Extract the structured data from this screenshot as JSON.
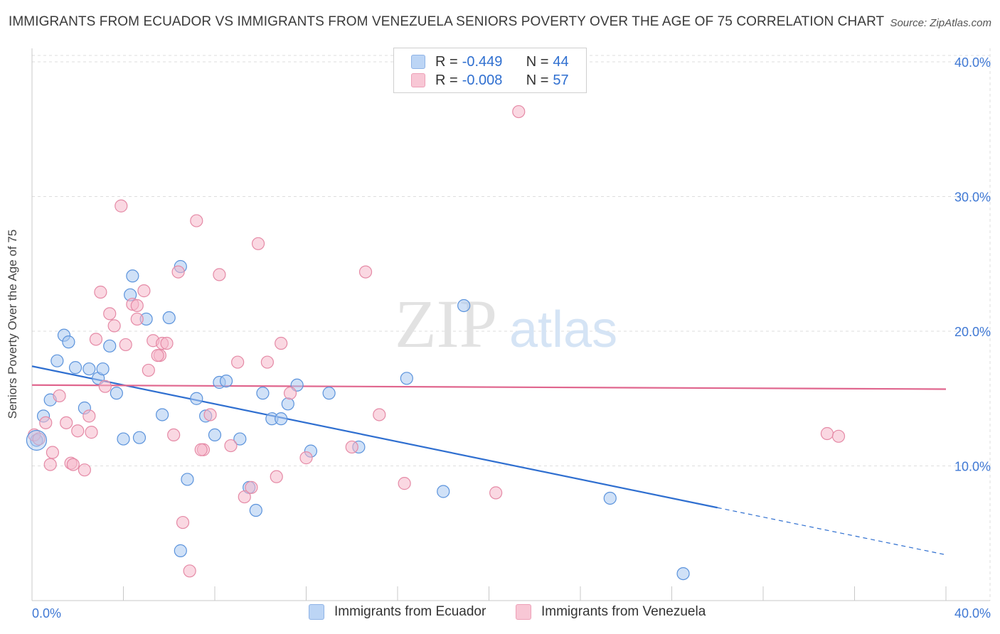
{
  "title": "IMMIGRANTS FROM ECUADOR VS IMMIGRANTS FROM VENEZUELA SENIORS POVERTY OVER THE AGE OF 75 CORRELATION CHART",
  "source": "Source: ZipAtlas.com",
  "watermark": {
    "zip": "ZIP",
    "atlas": "atlas"
  },
  "legend": {
    "rows": [
      {
        "r_label": "R = ",
        "r_value": "-0.449",
        "n_label": "N = ",
        "n_value": "44",
        "color": "#a9c8f0"
      },
      {
        "r_label": "R = ",
        "r_value": "-0.008",
        "n_label": "N = ",
        "n_value": "57",
        "color": "#f5b8ca"
      }
    ]
  },
  "bottom_legend": [
    {
      "label": "Immigrants from Ecuador",
      "color": "#a9c8f0"
    },
    {
      "label": "Immigrants from Venezuela",
      "color": "#f5b8ca"
    }
  ],
  "chart_data": {
    "type": "scatter",
    "title": "IMMIGRANTS FROM ECUADOR VS IMMIGRANTS FROM VENEZUELA SENIORS POVERTY OVER THE AGE OF 75 CORRELATION CHART",
    "xlabel": "",
    "ylabel": "Seniors Poverty Over the Age of 75",
    "xlim": [
      0,
      40
    ],
    "ylim": [
      0,
      41
    ],
    "x_tick_labels": [
      "0.0%",
      "40.0%"
    ],
    "y_tick_labels": [
      "10.0%",
      "20.0%",
      "30.0%",
      "40.0%"
    ],
    "y_ticks": [
      10,
      20,
      30,
      40
    ],
    "grid": true,
    "legend_position": "top-center",
    "series": [
      {
        "name": "Immigrants from Ecuador",
        "color": "#5b93dc",
        "fill": "#a9c8f0",
        "trend": {
          "x0": 0,
          "y0": 17.4,
          "x1": 30,
          "y1": 6.9,
          "dash_to_x": 40,
          "dash_to_y": 3.4,
          "color": "#2f6fd0"
        },
        "points": [
          [
            0.2,
            11.9
          ],
          [
            0.5,
            13.7
          ],
          [
            0.8,
            14.9
          ],
          [
            1.1,
            17.8
          ],
          [
            1.4,
            19.7
          ],
          [
            1.6,
            19.2
          ],
          [
            1.9,
            17.3
          ],
          [
            2.3,
            14.3
          ],
          [
            2.5,
            17.2
          ],
          [
            2.9,
            16.5
          ],
          [
            3.1,
            17.2
          ],
          [
            3.4,
            18.9
          ],
          [
            3.7,
            15.4
          ],
          [
            4.0,
            12.0
          ],
          [
            4.3,
            22.7
          ],
          [
            4.4,
            24.1
          ],
          [
            4.7,
            12.1
          ],
          [
            5.0,
            20.9
          ],
          [
            5.7,
            13.8
          ],
          [
            6.0,
            21.0
          ],
          [
            6.5,
            24.8
          ],
          [
            6.8,
            9.0
          ],
          [
            7.2,
            15.0
          ],
          [
            7.6,
            13.7
          ],
          [
            8.2,
            16.2
          ],
          [
            8.5,
            16.3
          ],
          [
            8.0,
            12.3
          ],
          [
            9.1,
            12.0
          ],
          [
            9.5,
            8.4
          ],
          [
            9.8,
            6.7
          ],
          [
            10.1,
            15.4
          ],
          [
            10.5,
            13.5
          ],
          [
            10.9,
            13.5
          ],
          [
            11.2,
            14.6
          ],
          [
            11.6,
            16.0
          ],
          [
            12.2,
            11.1
          ],
          [
            13.0,
            15.4
          ],
          [
            14.3,
            11.4
          ],
          [
            16.4,
            16.5
          ],
          [
            18.0,
            8.1
          ],
          [
            18.9,
            21.9
          ],
          [
            25.3,
            7.6
          ],
          [
            28.5,
            2.0
          ],
          [
            6.5,
            3.7
          ]
        ]
      },
      {
        "name": "Immigrants from Venezuela",
        "color": "#e58aa6",
        "fill": "#f5b8ca",
        "trend": {
          "x0": 0,
          "y0": 16.0,
          "x1": 40,
          "y1": 15.7,
          "color": "#e0668e"
        },
        "points": [
          [
            0.1,
            12.3
          ],
          [
            0.3,
            12.0
          ],
          [
            0.6,
            13.2
          ],
          [
            0.9,
            11.0
          ],
          [
            1.2,
            15.2
          ],
          [
            1.5,
            13.2
          ],
          [
            1.7,
            10.2
          ],
          [
            2.0,
            12.6
          ],
          [
            2.3,
            9.7
          ],
          [
            2.5,
            13.7
          ],
          [
            2.6,
            12.5
          ],
          [
            2.8,
            19.4
          ],
          [
            3.0,
            22.9
          ],
          [
            3.4,
            21.3
          ],
          [
            3.6,
            20.4
          ],
          [
            3.9,
            29.3
          ],
          [
            4.1,
            19.0
          ],
          [
            4.4,
            22.0
          ],
          [
            4.6,
            21.9
          ],
          [
            4.9,
            23.0
          ],
          [
            5.1,
            17.1
          ],
          [
            5.3,
            19.3
          ],
          [
            5.6,
            18.2
          ],
          [
            5.7,
            19.1
          ],
          [
            5.9,
            19.1
          ],
          [
            6.2,
            12.3
          ],
          [
            6.4,
            24.4
          ],
          [
            6.6,
            5.8
          ],
          [
            6.9,
            2.2
          ],
          [
            7.2,
            28.2
          ],
          [
            7.5,
            11.2
          ],
          [
            7.8,
            13.8
          ],
          [
            8.2,
            24.2
          ],
          [
            8.7,
            11.5
          ],
          [
            9.0,
            17.7
          ],
          [
            9.3,
            7.7
          ],
          [
            9.6,
            8.4
          ],
          [
            9.9,
            26.5
          ],
          [
            10.3,
            17.7
          ],
          [
            10.7,
            9.2
          ],
          [
            10.9,
            19.1
          ],
          [
            11.3,
            15.4
          ],
          [
            12.0,
            10.6
          ],
          [
            14.0,
            11.4
          ],
          [
            14.6,
            24.4
          ],
          [
            15.2,
            13.8
          ],
          [
            16.3,
            8.7
          ],
          [
            20.3,
            8.0
          ],
          [
            21.3,
            36.3
          ],
          [
            34.8,
            12.4
          ],
          [
            35.3,
            12.2
          ],
          [
            0.8,
            10.1
          ],
          [
            1.8,
            10.1
          ],
          [
            3.2,
            15.9
          ],
          [
            4.6,
            20.9
          ],
          [
            5.5,
            18.2
          ],
          [
            7.4,
            11.2
          ]
        ]
      }
    ]
  }
}
